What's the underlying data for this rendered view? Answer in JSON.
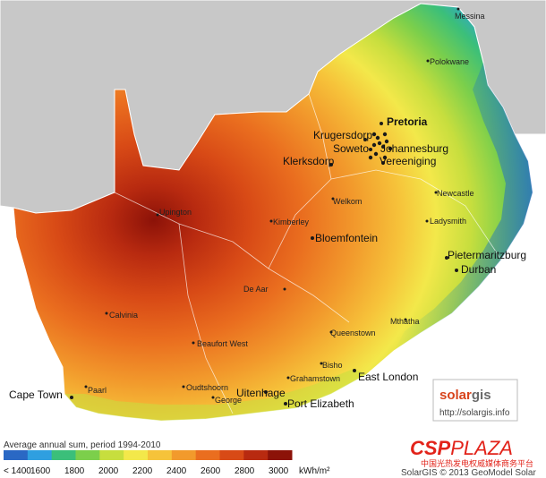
{
  "colors": {
    "ocean": "#ffffff",
    "neighbours": "#c8c8c8",
    "border": "#ffffff",
    "cities": "#1a1a1a",
    "ramp": [
      "#2a68c4",
      "#2f9fe0",
      "#3bbf7a",
      "#7ccf4b",
      "#c7de3e",
      "#f3e84a",
      "#f6c33a",
      "#f29a2c",
      "#ea6e1f",
      "#d84a16",
      "#b82a10",
      "#8c1208"
    ]
  },
  "map": {
    "cities": [
      {
        "name": "Messina",
        "size": "small"
      },
      {
        "name": "Polokwane",
        "size": "small"
      },
      {
        "name": "Pretoria",
        "size": "bold"
      },
      {
        "name": "Krugersdorp",
        "size": "medium"
      },
      {
        "name": "Soweto",
        "size": "large"
      },
      {
        "name": "Johannesburg",
        "size": "large"
      },
      {
        "name": "Vereeniging",
        "size": "medium"
      },
      {
        "name": "Klerksdorp",
        "size": "medium"
      },
      {
        "name": "Welkom",
        "size": "small"
      },
      {
        "name": "Newcastle",
        "size": "small"
      },
      {
        "name": "Ladysmith",
        "size": "small"
      },
      {
        "name": "Upington",
        "size": "small"
      },
      {
        "name": "Kimberley",
        "size": "small"
      },
      {
        "name": "Bloemfontein",
        "size": "medium"
      },
      {
        "name": "Pietermaritzburg",
        "size": "medium"
      },
      {
        "name": "Durban",
        "size": "large"
      },
      {
        "name": "De Aar",
        "size": "small"
      },
      {
        "name": "Calvinia",
        "size": "small"
      },
      {
        "name": "Mthatha",
        "size": "small"
      },
      {
        "name": "Queenstown",
        "size": "small"
      },
      {
        "name": "Beaufort West",
        "size": "small"
      },
      {
        "name": "Bisho",
        "size": "small"
      },
      {
        "name": "East London",
        "size": "large"
      },
      {
        "name": "Grahamstown",
        "size": "small"
      },
      {
        "name": "Oudtshoorn",
        "size": "small"
      },
      {
        "name": "Paarl",
        "size": "small"
      },
      {
        "name": "Cape Town",
        "size": "large"
      },
      {
        "name": "George",
        "size": "small"
      },
      {
        "name": "Uitenhage",
        "size": "medium"
      },
      {
        "name": "Port Elizabeth",
        "size": "medium"
      }
    ]
  },
  "legend": {
    "title": "Average annual sum, period 1994-2010",
    "ticks": [
      "< 1400",
      "1600",
      "1800",
      "2000",
      "2200",
      "2400",
      "2600",
      "2800",
      "3000"
    ],
    "unit": "kWh/m²"
  },
  "logo": {
    "brand_a": "solar",
    "brand_b": "gis",
    "url": "http://solargis.info"
  },
  "watermark": {
    "brand_a": "CSP",
    "brand_b": "PLAZA",
    "subtitle": "中国光热发电权威媒体商务平台"
  },
  "copyright": "SolarGIS © 2013 GeoModel Solar"
}
